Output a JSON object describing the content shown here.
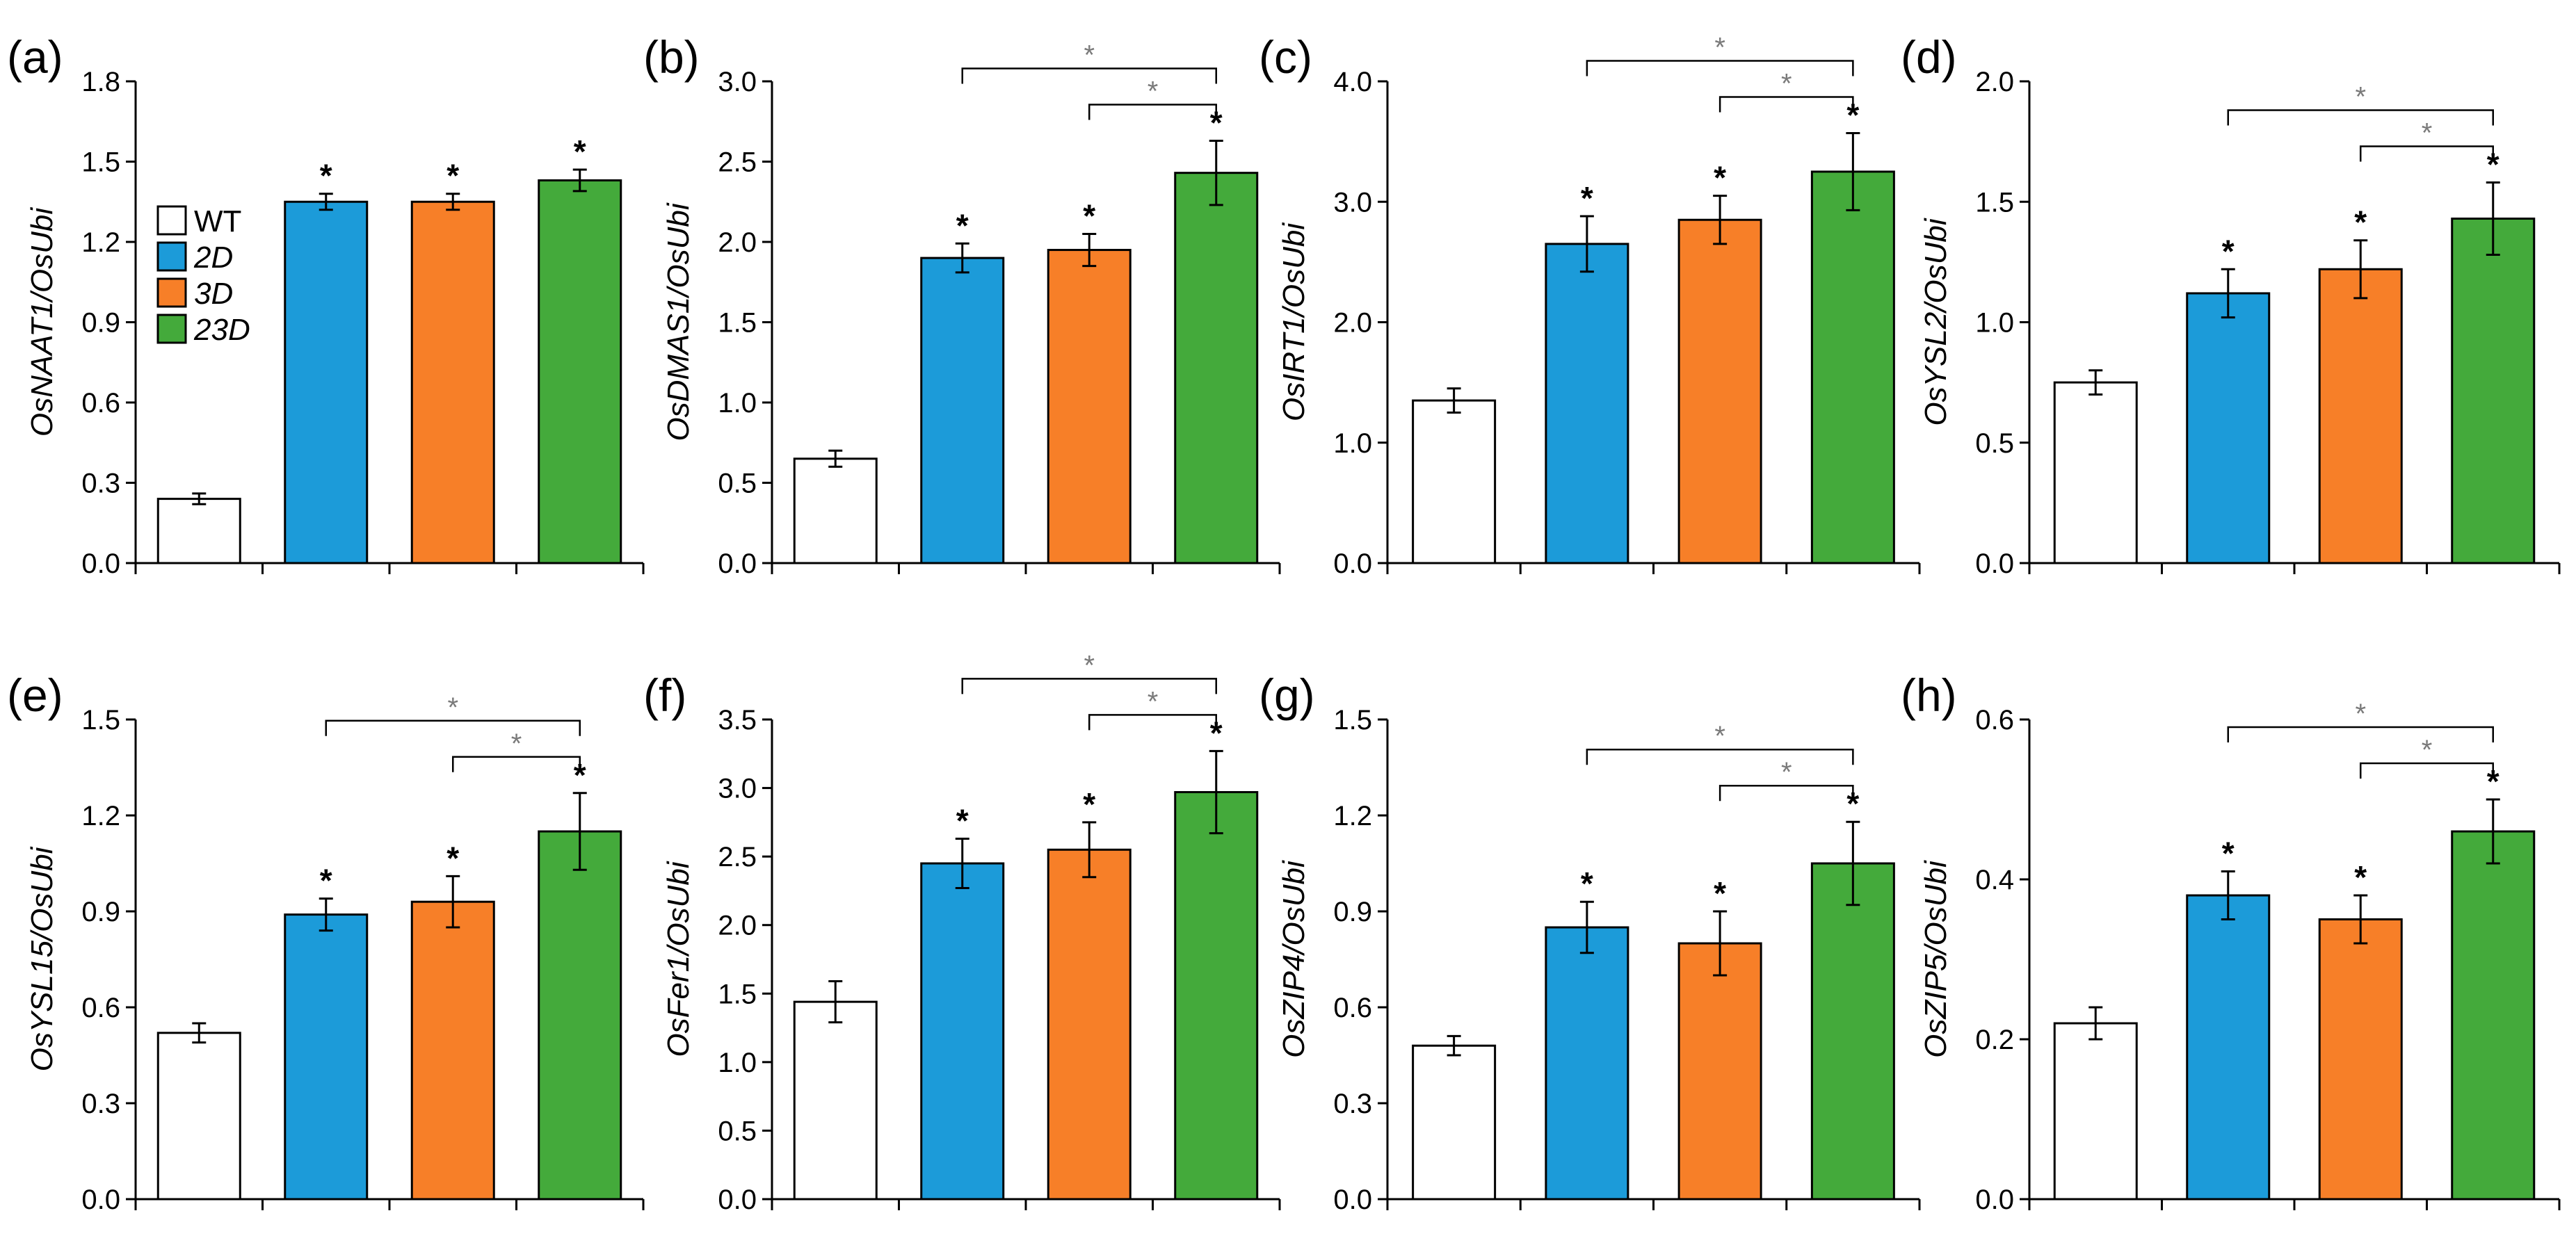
{
  "colors": {
    "WT": "#ffffff",
    "2D": "#1c9bd9",
    "3D": "#f77f28",
    "23D": "#44aa3b",
    "bar_stroke": "#000000",
    "significance_bracket": "#000000"
  },
  "chart_data": [
    {
      "panel": "(a)",
      "type": "bar",
      "ylabel": "OsNAAT1/OsUbi",
      "categories": [
        "WT",
        "2D",
        "3D",
        "23D"
      ],
      "values": [
        0.24,
        1.35,
        1.35,
        1.43
      ],
      "errors": [
        0.02,
        0.03,
        0.03,
        0.04
      ],
      "ylim": [
        0,
        1.8
      ],
      "yticks": [
        "0.0",
        "0.3",
        "0.6",
        "0.9",
        "1.2",
        "1.5",
        "1.8"
      ],
      "significance": [
        "",
        "*",
        "*",
        "*"
      ],
      "brackets": [],
      "legend": [
        "WT",
        "2D",
        "3D",
        "23D"
      ]
    },
    {
      "panel": "(b)",
      "type": "bar",
      "ylabel": "OsDMAS1/OsUbi",
      "categories": [
        "WT",
        "2D",
        "3D",
        "23D"
      ],
      "values": [
        0.65,
        1.9,
        1.95,
        2.43
      ],
      "errors": [
        0.05,
        0.09,
        0.1,
        0.2
      ],
      "ylim": [
        0,
        3.0
      ],
      "yticks": [
        "0.0",
        "0.5",
        "1.0",
        "1.5",
        "2.0",
        "2.5",
        "3.0"
      ],
      "significance": [
        "",
        "*",
        "*",
        "*"
      ],
      "brackets": [
        {
          "from": 1,
          "to": 3,
          "label": "*"
        },
        {
          "from": 2,
          "to": 3,
          "label": "*"
        }
      ]
    },
    {
      "panel": "(c)",
      "type": "bar",
      "ylabel": "OsIRT1/OsUbi",
      "categories": [
        "WT",
        "2D",
        "3D",
        "23D"
      ],
      "values": [
        1.35,
        2.65,
        2.85,
        3.25
      ],
      "errors": [
        0.1,
        0.23,
        0.2,
        0.32
      ],
      "ylim": [
        0,
        4.0
      ],
      "yticks": [
        "0.0",
        "1.0",
        "2.0",
        "3.0",
        "4.0"
      ],
      "significance": [
        "",
        "*",
        "*",
        "*"
      ],
      "brackets": [
        {
          "from": 1,
          "to": 3,
          "label": "*"
        },
        {
          "from": 2,
          "to": 3,
          "label": "*"
        }
      ]
    },
    {
      "panel": "(d)",
      "type": "bar",
      "ylabel": "OsYSL2/OsUbi",
      "categories": [
        "WT",
        "2D",
        "3D",
        "23D"
      ],
      "values": [
        0.75,
        1.12,
        1.22,
        1.43
      ],
      "errors": [
        0.05,
        0.1,
        0.12,
        0.15
      ],
      "ylim": [
        0,
        2.0
      ],
      "yticks": [
        "0.0",
        "0.5",
        "1.0",
        "1.5",
        "2.0"
      ],
      "significance": [
        "",
        "*",
        "*",
        "*"
      ],
      "brackets": [
        {
          "from": 1,
          "to": 3,
          "label": "*"
        },
        {
          "from": 2,
          "to": 3,
          "label": "*"
        }
      ]
    },
    {
      "panel": "(e)",
      "type": "bar",
      "ylabel": "OsYSL15/OsUbi",
      "categories": [
        "WT",
        "2D",
        "3D",
        "23D"
      ],
      "values": [
        0.52,
        0.89,
        0.93,
        1.15
      ],
      "errors": [
        0.03,
        0.05,
        0.08,
        0.12
      ],
      "ylim": [
        0,
        1.5
      ],
      "yticks": [
        "0.0",
        "0.3",
        "0.6",
        "0.9",
        "1.2",
        "1.5"
      ],
      "significance": [
        "",
        "*",
        "*",
        "*"
      ],
      "brackets": [
        {
          "from": 1,
          "to": 3,
          "label": "*"
        },
        {
          "from": 2,
          "to": 3,
          "label": "*"
        }
      ]
    },
    {
      "panel": "(f)",
      "type": "bar",
      "ylabel": "OsFer1/OsUbi",
      "categories": [
        "WT",
        "2D",
        "3D",
        "23D"
      ],
      "values": [
        1.44,
        2.45,
        2.55,
        2.97
      ],
      "errors": [
        0.15,
        0.18,
        0.2,
        0.3
      ],
      "ylim": [
        0,
        3.5
      ],
      "yticks": [
        "0.0",
        "0.5",
        "1.0",
        "1.5",
        "2.0",
        "2.5",
        "3.0",
        "3.5"
      ],
      "significance": [
        "",
        "*",
        "*",
        "*"
      ],
      "brackets": [
        {
          "from": 1,
          "to": 3,
          "label": "*"
        },
        {
          "from": 2,
          "to": 3,
          "label": "*"
        }
      ]
    },
    {
      "panel": "(g)",
      "type": "bar",
      "ylabel": "OsZIP4/OsUbi",
      "categories": [
        "WT",
        "2D",
        "3D",
        "23D"
      ],
      "values": [
        0.48,
        0.85,
        0.8,
        1.05
      ],
      "errors": [
        0.03,
        0.08,
        0.1,
        0.13
      ],
      "ylim": [
        0,
        1.5
      ],
      "yticks": [
        "0.0",
        "0.3",
        "0.6",
        "0.9",
        "1.2",
        "1.5"
      ],
      "significance": [
        "",
        "*",
        "*",
        "*"
      ],
      "brackets": [
        {
          "from": 1,
          "to": 3,
          "label": "*"
        },
        {
          "from": 2,
          "to": 3,
          "label": "*"
        }
      ]
    },
    {
      "panel": "(h)",
      "type": "bar",
      "ylabel": "OsZIP5/OsUbi",
      "categories": [
        "WT",
        "2D",
        "3D",
        "23D"
      ],
      "values": [
        0.22,
        0.38,
        0.35,
        0.46
      ],
      "errors": [
        0.02,
        0.03,
        0.03,
        0.04
      ],
      "ylim": [
        0,
        0.6
      ],
      "yticks": [
        "0.0",
        "0.2",
        "0.4",
        "0.6"
      ],
      "significance": [
        "",
        "*",
        "*",
        "*"
      ],
      "brackets": [
        {
          "from": 1,
          "to": 3,
          "label": "*"
        },
        {
          "from": 2,
          "to": 3,
          "label": "*"
        }
      ]
    }
  ]
}
